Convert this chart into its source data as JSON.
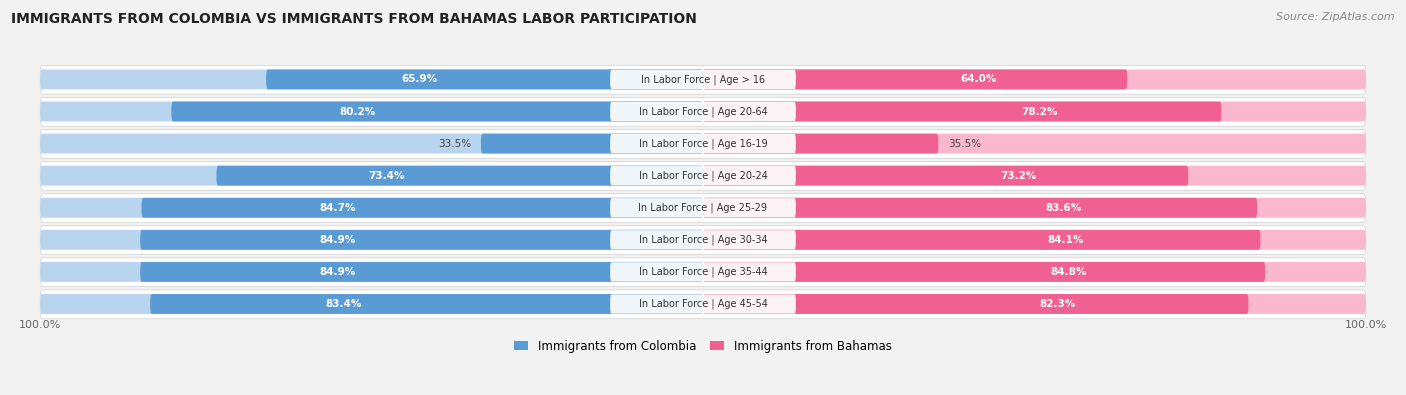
{
  "title": "IMMIGRANTS FROM COLOMBIA VS IMMIGRANTS FROM BAHAMAS LABOR PARTICIPATION",
  "source": "Source: ZipAtlas.com",
  "categories": [
    "In Labor Force | Age > 16",
    "In Labor Force | Age 20-64",
    "In Labor Force | Age 16-19",
    "In Labor Force | Age 20-24",
    "In Labor Force | Age 25-29",
    "In Labor Force | Age 30-34",
    "In Labor Force | Age 35-44",
    "In Labor Force | Age 45-54"
  ],
  "colombia_values": [
    65.9,
    80.2,
    33.5,
    73.4,
    84.7,
    84.9,
    84.9,
    83.4
  ],
  "bahamas_values": [
    64.0,
    78.2,
    35.5,
    73.2,
    83.6,
    84.1,
    84.8,
    82.3
  ],
  "colombia_color": "#5b9bd5",
  "bahamas_color": "#f06090",
  "colombia_light_color": "#b8d4ee",
  "bahamas_light_color": "#f9b8ce",
  "background_color": "#f2f2f2",
  "row_bg_odd": "#ebebeb",
  "row_bg_even": "#f7f7f7",
  "legend_colombia": "Immigrants from Colombia",
  "legend_bahamas": "Immigrants from Bahamas",
  "max_value": 100.0
}
